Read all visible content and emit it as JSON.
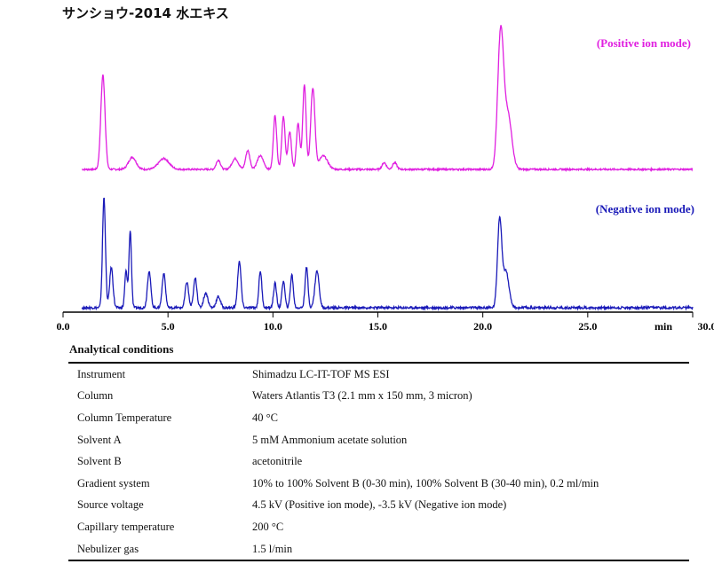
{
  "page": {
    "title": "サンショウ-2014 水エキス"
  },
  "chart_data": {
    "type": "line",
    "title": "サンショウ-2014 水エキス",
    "xlabel": "min",
    "xlim": [
      0.0,
      30.0
    ],
    "x_ticks": [
      "0.0",
      "5.0",
      "10.0",
      "15.0",
      "20.0",
      "25.0",
      "30.0"
    ],
    "x_unit_label": "min",
    "grid": false,
    "series": [
      {
        "name": "(Positive ion mode)",
        "color": "#e020e0",
        "peaks": [
          {
            "rt": 1.9,
            "height": 0.7,
            "width": 0.1
          },
          {
            "rt": 3.3,
            "height": 0.09,
            "width": 0.18
          },
          {
            "rt": 4.8,
            "height": 0.08,
            "width": 0.25
          },
          {
            "rt": 7.4,
            "height": 0.07,
            "width": 0.1
          },
          {
            "rt": 8.2,
            "height": 0.08,
            "width": 0.15
          },
          {
            "rt": 8.8,
            "height": 0.14,
            "width": 0.1
          },
          {
            "rt": 9.4,
            "height": 0.1,
            "width": 0.15
          },
          {
            "rt": 10.1,
            "height": 0.4,
            "width": 0.08
          },
          {
            "rt": 10.5,
            "height": 0.39,
            "width": 0.08
          },
          {
            "rt": 10.8,
            "height": 0.28,
            "width": 0.08
          },
          {
            "rt": 11.2,
            "height": 0.34,
            "width": 0.08
          },
          {
            "rt": 11.5,
            "height": 0.63,
            "width": 0.08
          },
          {
            "rt": 11.9,
            "height": 0.6,
            "width": 0.1
          },
          {
            "rt": 12.4,
            "height": 0.1,
            "width": 0.2
          },
          {
            "rt": 15.3,
            "height": 0.05,
            "width": 0.1
          },
          {
            "rt": 15.8,
            "height": 0.05,
            "width": 0.1
          },
          {
            "rt": 20.85,
            "height": 1.0,
            "width": 0.14
          },
          {
            "rt": 21.2,
            "height": 0.4,
            "width": 0.18
          }
        ]
      },
      {
        "name": "(Negative ion mode)",
        "color": "#1a1ab8",
        "peaks": [
          {
            "rt": 1.95,
            "height": 0.9,
            "width": 0.07
          },
          {
            "rt": 2.3,
            "height": 0.33,
            "width": 0.08
          },
          {
            "rt": 3.0,
            "height": 0.3,
            "width": 0.06
          },
          {
            "rt": 3.2,
            "height": 0.63,
            "width": 0.06
          },
          {
            "rt": 4.1,
            "height": 0.3,
            "width": 0.08
          },
          {
            "rt": 4.8,
            "height": 0.28,
            "width": 0.08
          },
          {
            "rt": 5.9,
            "height": 0.21,
            "width": 0.08
          },
          {
            "rt": 6.3,
            "height": 0.24,
            "width": 0.08
          },
          {
            "rt": 6.8,
            "height": 0.12,
            "width": 0.1
          },
          {
            "rt": 7.4,
            "height": 0.09,
            "width": 0.1
          },
          {
            "rt": 8.4,
            "height": 0.38,
            "width": 0.08
          },
          {
            "rt": 9.4,
            "height": 0.3,
            "width": 0.07
          },
          {
            "rt": 10.1,
            "height": 0.2,
            "width": 0.07
          },
          {
            "rt": 10.5,
            "height": 0.22,
            "width": 0.07
          },
          {
            "rt": 10.9,
            "height": 0.27,
            "width": 0.07
          },
          {
            "rt": 11.6,
            "height": 0.33,
            "width": 0.07
          },
          {
            "rt": 12.1,
            "height": 0.3,
            "width": 0.1
          },
          {
            "rt": 20.8,
            "height": 0.72,
            "width": 0.1
          },
          {
            "rt": 21.1,
            "height": 0.3,
            "width": 0.14
          }
        ]
      }
    ]
  },
  "conditions": {
    "heading": "Analytical conditions",
    "rows": [
      {
        "label": "Instrument",
        "value": "Shimadzu LC-IT-TOF MS ESI"
      },
      {
        "label": "Column",
        "value": "Waters Atlantis T3 (2.1 mm x 150 mm, 3 micron)"
      },
      {
        "label": "Column Temperature",
        "value": "40 °C"
      },
      {
        "label": "Solvent A",
        "value": "5 mM Ammonium acetate solution"
      },
      {
        "label": "Solvent B",
        "value": "acetonitrile"
      },
      {
        "label": "Gradient system",
        "value": "10% to 100% Solvent B (0-30 min), 100% Solvent B (30-40 min), 0.2 ml/min"
      },
      {
        "label": "Source voltage",
        "value": "4.5 kV (Positive ion mode), -3.5 kV (Negative ion mode)"
      },
      {
        "label": "Capillary temperature",
        "value": "200 °C"
      },
      {
        "label": "Nebulizer gas",
        "value": "1.5 l/min"
      }
    ]
  }
}
